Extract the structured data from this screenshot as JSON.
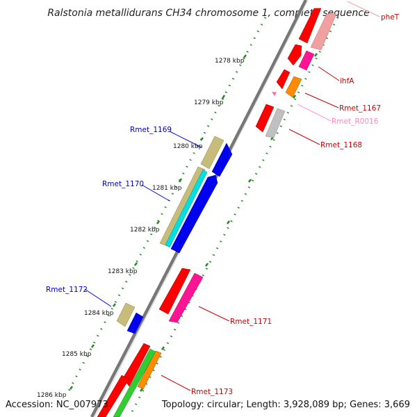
{
  "title": "Ralstonia metallidurans CH34 chromosome 1, complete sequence",
  "footer": {
    "accession": "Accession: NC_007973",
    "summary": "Topology: circular; Length: 3,928,089 bp; Genes: 3,669"
  },
  "ticks": [
    "1278 kbp",
    "1279 kbp",
    "1280 kbp",
    "1281 kbp",
    "1282 kbp",
    "1283 kbp",
    "1284 kbp",
    "1285 kbp",
    "1286 kbp"
  ],
  "genes": [
    {
      "label": "pheT",
      "color": "#cc0000"
    },
    {
      "label": "ihfA",
      "color": "#cc0000"
    },
    {
      "label": "Rmet_1167",
      "color": "#cc0000"
    },
    {
      "label": "Rmet_R0016",
      "color": "#ff88bb"
    },
    {
      "label": "Rmet_1168",
      "color": "#cc0000"
    },
    {
      "label": "Rmet_1169",
      "color": "#0000cc"
    },
    {
      "label": "Rmet_1170",
      "color": "#0000cc"
    },
    {
      "label": "Rmet_1172",
      "color": "#0000cc"
    },
    {
      "label": "Rmet_1171",
      "color": "#cc0000"
    },
    {
      "label": "Rmet_1173",
      "color": "#cc0000"
    }
  ],
  "colors": {
    "backbone": "#777777",
    "tick_dots": "#228b22",
    "red": "#ff0000",
    "pink": "#f0a0a0",
    "magenta": "#ff1493",
    "orange": "#ff8c00",
    "grey": "#c0c0c0",
    "khaki": "#c8bc7a",
    "cyan": "#00e0e0",
    "blue": "#0000ee",
    "green": "#33cc33"
  }
}
